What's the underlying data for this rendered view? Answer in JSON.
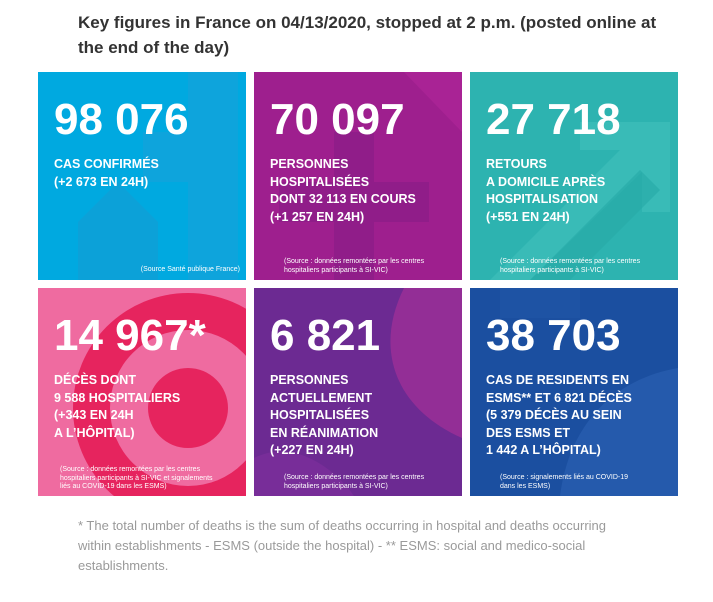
{
  "title": "Key figures in France on 04/13/2020, stopped at 2 p.m. (posted online at the end of the day)",
  "cards": [
    {
      "number": "98 076",
      "label": "CAS CONFIRMÉS\n(+2 673 EN 24H)",
      "source": "(Source Santé publique France)",
      "color": "#00a9e0"
    },
    {
      "number": "70 097",
      "label": "PERSONNES\nHOSPITALISÉES\nDONT 32 113 EN COURS\n(+1 257 EN 24H)",
      "source": "(Source : données remontées par les centres\nhospitaliers participants à SI-VIC)",
      "color": "#9e1f8e"
    },
    {
      "number": "27 718",
      "label": "RETOURS\nA DOMICILE APRÈS\nHOSPITALISATION\n(+551 EN 24H)",
      "source": "(Source : données remontées par les centres\nhospitaliers participants à SI-VIC)",
      "color": "#2db3b0"
    },
    {
      "number": "14 967*",
      "label": "DÉCÈS DONT\n9 588 HOSPITALIERS\n(+343 EN 24H\nA L’HÔPITAL)",
      "source": "(Source : données remontées par les centres\nhospitaliers participants à SI-VIC et signalements\nliés au COVID-19 dans les ESMS)",
      "color": "#e6245e"
    },
    {
      "number": "6 821",
      "label": "PERSONNES\nACTUELLEMENT\nHOSPITALISÉES\nEN RÉANIMATION\n(+227 EN 24H)",
      "source": "(Source : données remontées par les centres\nhospitaliers participants à SI-VIC)",
      "color": "#6c2a92"
    },
    {
      "number": "38 703",
      "label": "CAS DE RESIDENTS EN\nESMS** ET 6 821 DÉCÈS\n(5 379 DÉCÈS AU SEIN\nDES ESMS ET\n1 442 A L’HÔPITAL)",
      "source": "(Source : signalements liés au COVID-19\ndans les ESMS)",
      "color": "#1b4fa0"
    }
  ],
  "footnote": "* The total number of deaths is the sum of deaths occurring in hospital and deaths occurring within establishments - ESMS (outside the hospital) - ** ESMS: social and medico-social establishments."
}
